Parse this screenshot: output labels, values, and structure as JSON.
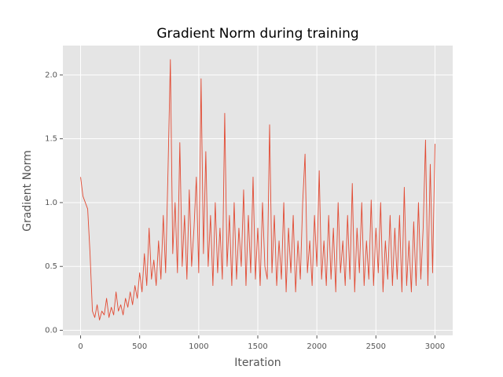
{
  "chart_data": {
    "type": "line",
    "title": "Gradient Norm during training",
    "x_label": "Iteration",
    "y_label": "Gradient Norm",
    "color": "#E24A33",
    "grid": true,
    "xlim": [
      -150,
      3150
    ],
    "ylim": [
      -0.04,
      2.23
    ],
    "xticks": [
      0,
      500,
      1000,
      1500,
      2000,
      2500,
      3000
    ],
    "yticks": [
      {
        "value": 0,
        "label": "0.0"
      },
      0.5,
      {
        "value": 1,
        "label": "1.0"
      },
      1.5,
      {
        "value": 2,
        "label": "2.0"
      }
    ],
    "x": [
      0,
      20,
      40,
      60,
      80,
      100,
      120,
      140,
      160,
      180,
      200,
      220,
      240,
      260,
      280,
      300,
      320,
      340,
      360,
      380,
      400,
      420,
      440,
      460,
      480,
      500,
      520,
      540,
      560,
      580,
      600,
      620,
      640,
      660,
      680,
      700,
      720,
      740,
      760,
      780,
      800,
      820,
      840,
      860,
      880,
      900,
      920,
      940,
      960,
      980,
      1000,
      1020,
      1040,
      1060,
      1080,
      1100,
      1120,
      1140,
      1160,
      1180,
      1200,
      1220,
      1240,
      1260,
      1280,
      1300,
      1320,
      1340,
      1360,
      1380,
      1400,
      1420,
      1440,
      1460,
      1480,
      1500,
      1520,
      1540,
      1560,
      1580,
      1600,
      1620,
      1640,
      1660,
      1680,
      1700,
      1720,
      1740,
      1760,
      1780,
      1800,
      1820,
      1840,
      1860,
      1880,
      1900,
      1920,
      1940,
      1960,
      1980,
      2000,
      2020,
      2040,
      2060,
      2080,
      2100,
      2120,
      2140,
      2160,
      2180,
      2200,
      2220,
      2240,
      2260,
      2280,
      2300,
      2320,
      2340,
      2360,
      2380,
      2400,
      2420,
      2440,
      2460,
      2480,
      2500,
      2520,
      2540,
      2560,
      2580,
      2600,
      2620,
      2640,
      2660,
      2680,
      2700,
      2720,
      2740,
      2760,
      2780,
      2800,
      2820,
      2840,
      2860,
      2880,
      2900,
      2920,
      2940,
      2960,
      2980,
      3000
    ],
    "values": [
      1.2,
      1.05,
      1.0,
      0.95,
      0.6,
      0.15,
      0.1,
      0.2,
      0.08,
      0.15,
      0.12,
      0.25,
      0.1,
      0.18,
      0.12,
      0.3,
      0.15,
      0.2,
      0.12,
      0.25,
      0.18,
      0.3,
      0.2,
      0.35,
      0.25,
      0.45,
      0.3,
      0.6,
      0.35,
      0.8,
      0.4,
      0.55,
      0.35,
      0.7,
      0.4,
      0.9,
      0.45,
      1.25,
      2.12,
      0.6,
      1.0,
      0.45,
      1.47,
      0.5,
      0.9,
      0.4,
      1.1,
      0.5,
      0.8,
      1.2,
      0.45,
      1.97,
      0.6,
      1.4,
      0.5,
      0.9,
      0.35,
      1.0,
      0.45,
      0.8,
      0.4,
      1.7,
      0.5,
      0.9,
      0.35,
      1.0,
      0.4,
      0.8,
      0.5,
      1.1,
      0.35,
      0.9,
      0.45,
      1.2,
      0.4,
      0.8,
      0.35,
      1.0,
      0.5,
      0.4,
      1.61,
      0.45,
      0.9,
      0.35,
      0.7,
      0.4,
      1.0,
      0.3,
      0.8,
      0.45,
      0.9,
      0.3,
      0.7,
      0.4,
      1.0,
      1.38,
      0.45,
      0.7,
      0.35,
      0.9,
      0.5,
      1.25,
      0.4,
      0.7,
      0.35,
      0.9,
      0.4,
      0.8,
      0.3,
      1.0,
      0.45,
      0.7,
      0.35,
      0.9,
      0.4,
      1.15,
      0.3,
      0.8,
      0.45,
      1.0,
      0.35,
      0.7,
      0.4,
      1.02,
      0.35,
      0.8,
      0.45,
      1.0,
      0.3,
      0.7,
      0.4,
      0.9,
      0.35,
      0.8,
      0.4,
      0.9,
      0.3,
      1.12,
      0.35,
      0.7,
      0.3,
      0.85,
      0.35,
      1.0,
      0.4,
      0.8,
      1.49,
      0.35,
      1.3,
      0.45,
      1.46
    ]
  }
}
